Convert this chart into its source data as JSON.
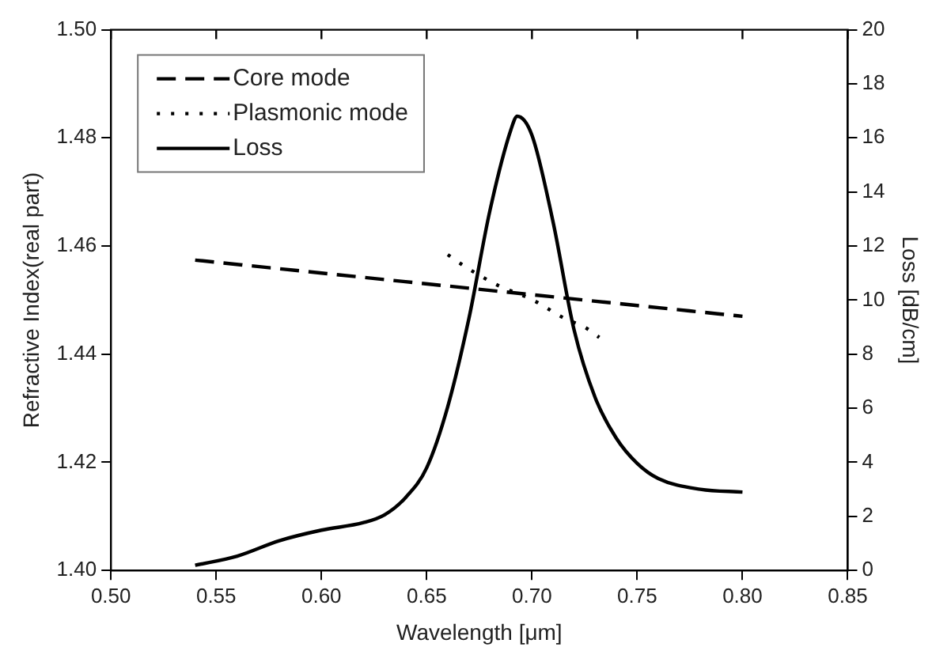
{
  "chart_data": {
    "type": "line",
    "xlabel": "Wavelength [μm]",
    "ylabel": "Refractive Index(real part)",
    "y2label": "Loss [dB/cm]",
    "xlim": [
      0.5,
      0.85
    ],
    "xticks": [
      {
        "value": 0.5,
        "label": "0.50"
      },
      0.55,
      {
        "value": 0.6,
        "label": "0.60"
      },
      0.65,
      {
        "value": 0.7,
        "label": "0.70"
      },
      0.75,
      {
        "value": 0.8,
        "label": "0.80"
      },
      0.85
    ],
    "ylim": [
      1.4,
      1.5
    ],
    "yticks": [
      {
        "value": 1.4,
        "label": "1.40"
      },
      1.42,
      1.44,
      1.46,
      1.48,
      {
        "value": 1.5,
        "label": "1.50"
      }
    ],
    "y2lim": [
      0,
      20
    ],
    "y2ticks": [
      0,
      2,
      4,
      6,
      8,
      10,
      12,
      14,
      16,
      18,
      20
    ],
    "grid": false,
    "legend": "top left",
    "marker": "none",
    "series": [
      {
        "name": "Core mode",
        "color": "#000000",
        "line_style": "dashed",
        "x": [
          0.54,
          0.8
        ],
        "values": [
          1.4574,
          1.447
        ]
      },
      {
        "name": "Plasmonic mode",
        "color": "#000000",
        "line_style": "dotted",
        "x": [
          0.66,
          0.669,
          0.684,
          0.7,
          0.716,
          0.725,
          0.732
        ],
        "values": [
          1.4584,
          1.456,
          1.4527,
          1.4501,
          1.4465,
          1.445,
          1.4431
        ]
      },
      {
        "name": "Loss",
        "color": "#000000",
        "line_style": "solid",
        "axis": "y2",
        "x": [
          0.54,
          0.56,
          0.58,
          0.6,
          0.62,
          0.63,
          0.64,
          0.65,
          0.66,
          0.67,
          0.68,
          0.69,
          0.693,
          0.7,
          0.71,
          0.72,
          0.73,
          0.74,
          0.75,
          0.76,
          0.78,
          0.8
        ],
        "values": [
          0.19,
          0.53,
          1.1,
          1.49,
          1.77,
          2.06,
          2.7,
          3.8,
          6.06,
          9.3,
          13.3,
          16.3,
          16.8,
          16.1,
          12.9,
          8.9,
          6.4,
          4.9,
          3.96,
          3.4,
          3.0,
          2.9
        ]
      }
    ]
  }
}
